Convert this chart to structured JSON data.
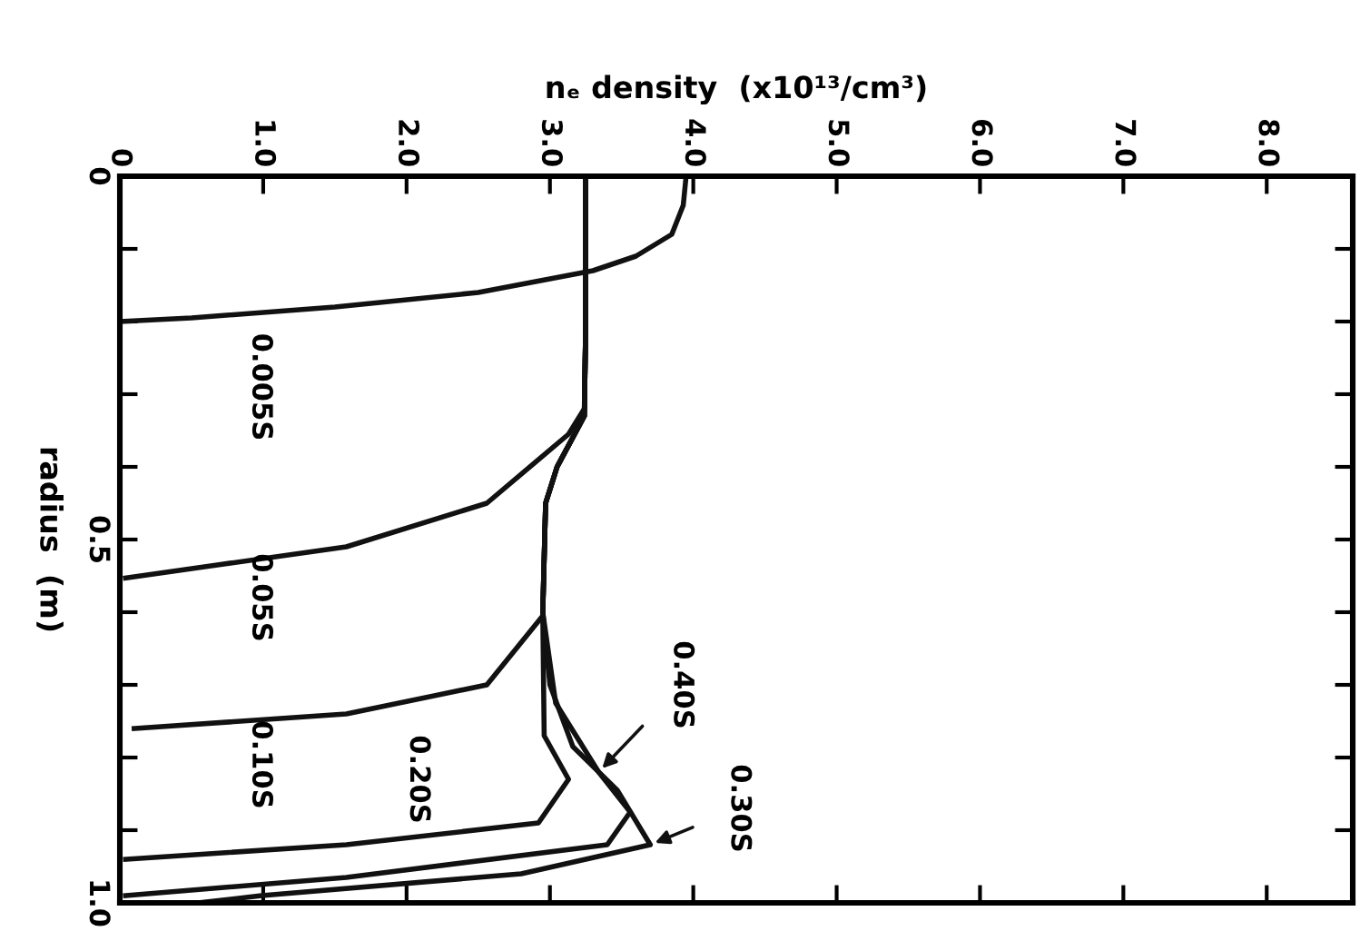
{
  "chart_data": {
    "type": "line",
    "xlabel": "nₑ density  (x10¹³/cm³)",
    "ylabel": "radius  (m)",
    "xlim": [
      0,
      8.6
    ],
    "ylim": [
      1.0,
      0
    ],
    "xticks": [
      0,
      {
        "value": 1,
        "label": "1.0"
      },
      {
        "value": 2,
        "label": "2.0"
      },
      {
        "value": 3,
        "label": "3.0"
      },
      {
        "value": 4,
        "label": "4.0"
      },
      {
        "value": 5,
        "label": "5.0"
      },
      {
        "value": 6,
        "label": "6.0"
      },
      {
        "value": 7,
        "label": "7.0"
      },
      {
        "value": 8,
        "label": "8.0"
      }
    ],
    "yticks": [
      0,
      {
        "value": 0.1,
        "label": null
      },
      {
        "value": 0.2,
        "label": null
      },
      {
        "value": 0.3,
        "label": null
      },
      {
        "value": 0.4,
        "label": null
      },
      0.5,
      {
        "value": 0.6,
        "label": null
      },
      {
        "value": 0.7,
        "label": null
      },
      {
        "value": 0.8,
        "label": null
      },
      {
        "value": 0.9,
        "label": null
      },
      {
        "value": 1.0,
        "label": "1.0"
      }
    ],
    "grid": false,
    "legend": false,
    "marker": "none",
    "line_style": "solid",
    "series": [
      {
        "name": "0.005S",
        "color": "#111111",
        "x": [
          3.95,
          3.93,
          3.85,
          3.6,
          3.3,
          2.5,
          1.5,
          0.5,
          0.0
        ],
        "values": [
          0.0,
          0.04,
          0.08,
          0.11,
          0.13,
          0.16,
          0.18,
          0.195,
          0.2
        ]
      },
      {
        "name": "0.05S",
        "color": "#111111",
        "x": [
          3.25,
          3.25,
          3.24,
          3.13,
          2.56,
          1.58,
          0.68,
          0.04
        ],
        "values": [
          0.0,
          0.2,
          0.32,
          0.355,
          0.45,
          0.51,
          0.535,
          0.553
        ]
      },
      {
        "name": "0.10S",
        "color": "#111111",
        "x": [
          3.25,
          3.25,
          3.24,
          3.05,
          2.97,
          2.95,
          2.56,
          1.58,
          0.1
        ],
        "values": [
          0.0,
          0.2,
          0.33,
          0.4,
          0.45,
          0.605,
          0.7,
          0.74,
          0.76
        ]
      },
      {
        "name": "0.20S",
        "color": "#111111",
        "x": [
          3.25,
          3.25,
          3.24,
          3.05,
          2.97,
          2.95,
          2.96,
          3.13,
          2.92,
          1.58,
          0.04
        ],
        "values": [
          0.0,
          0.2,
          0.33,
          0.4,
          0.45,
          0.6,
          0.77,
          0.83,
          0.89,
          0.92,
          0.94
        ]
      },
      {
        "name": "0.30S",
        "color": "#111111",
        "x": [
          3.25,
          3.25,
          3.24,
          3.05,
          2.97,
          2.95,
          3.0,
          3.16,
          3.47,
          3.7,
          2.8,
          0.99,
          0.55
        ],
        "values": [
          0.0,
          0.2,
          0.33,
          0.4,
          0.45,
          0.6,
          0.7,
          0.785,
          0.845,
          0.92,
          0.96,
          0.99,
          1.0
        ]
      },
      {
        "name": "0.40S",
        "color": "#111111",
        "x": [
          3.25,
          3.25,
          3.24,
          3.05,
          2.97,
          2.95,
          3.04,
          3.34,
          3.56,
          3.4,
          1.58,
          0.04
        ],
        "values": [
          0.0,
          0.2,
          0.33,
          0.4,
          0.45,
          0.6,
          0.725,
          0.82,
          0.875,
          0.92,
          0.965,
          0.99
        ]
      }
    ]
  }
}
